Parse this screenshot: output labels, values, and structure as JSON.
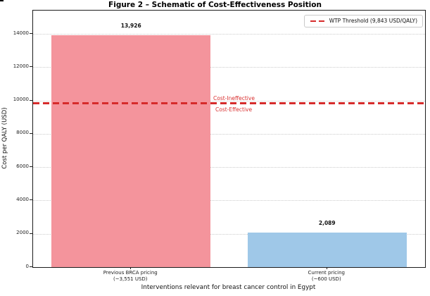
{
  "chart_data": {
    "type": "bar",
    "title": "Figure 2 – Schematic of Cost-Effectiveness Position",
    "xlabel": "Interventions relevant for breast cancer control in Egypt",
    "ylabel": "Cost per QALY (USD)",
    "ylim": [
      0,
      15400
    ],
    "yticks": [
      0,
      2000,
      4000,
      6000,
      8000,
      10000,
      12000,
      14000
    ],
    "grid": "horizontal dotted",
    "legend_position": "upper right",
    "bars": [
      {
        "category_line1": "Previous BRCA pricing",
        "category_line2": "(~3,551 USD)",
        "value": 13926,
        "value_label": "13,926",
        "color": "#f4949c"
      },
      {
        "category_line1": "Current pricing",
        "category_line2": "(~600 USD)",
        "value": 2089,
        "value_label": "2,089",
        "color": "#9fc8e8"
      }
    ],
    "threshold_line": {
      "value": 9843,
      "style": "dashed",
      "color": "#d62b2b",
      "legend_label": "WTP Threshold (9,843 USD/QALY)"
    },
    "annotations": [
      {
        "text": "Cost-Ineffective",
        "color": "#d93030",
        "position": "above-threshold"
      },
      {
        "text": "Cost-Effective",
        "color": "#d93030",
        "position": "below-threshold"
      }
    ]
  }
}
